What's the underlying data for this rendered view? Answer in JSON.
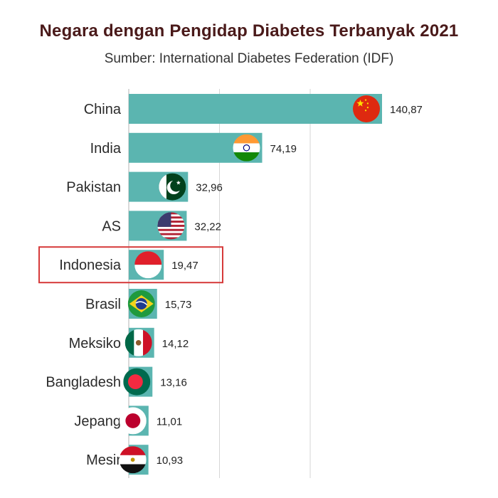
{
  "title": "Negara dengan Pengidap Diabetes Terbanyak 2021",
  "subtitle": "Sumber: International Diabetes Federation (IDF)",
  "colors": {
    "bar": "#5bb5b0",
    "highlight_border": "#d63a3a",
    "title": "#4a1a1a"
  },
  "chart_data": {
    "type": "bar",
    "orientation": "horizontal",
    "categories": [
      "China",
      "India",
      "Pakistan",
      "AS",
      "Indonesia",
      "Brasil",
      "Meksiko",
      "Bangladesh",
      "Jepang",
      "Mesir"
    ],
    "values": [
      140.87,
      74.19,
      32.96,
      32.22,
      19.47,
      15.73,
      14.12,
      13.16,
      11.01,
      10.93
    ],
    "value_labels": [
      "140,87",
      "74,19",
      "32,96",
      "32,22",
      "19,47",
      "15,73",
      "14,12",
      "13,16",
      "11,01",
      "10,93"
    ],
    "flags": [
      "china-flag",
      "india-flag",
      "pakistan-flag",
      "usa-flag",
      "indonesia-flag",
      "brazil-flag",
      "mexico-flag",
      "bangladesh-flag",
      "japan-flag",
      "egypt-flag"
    ],
    "highlighted_category": "Indonesia",
    "xlim": [
      0,
      140.87
    ],
    "grid": true,
    "title": "Negara dengan Pengidap Diabetes Terbanyak 2021",
    "subtitle": "Sumber: International Diabetes Federation (IDF)"
  }
}
